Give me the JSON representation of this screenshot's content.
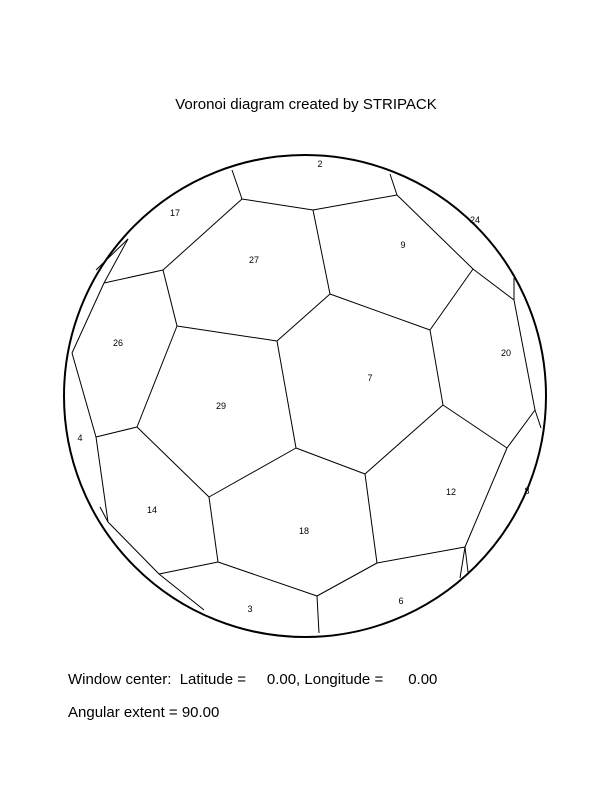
{
  "title": "Voronoi diagram created by STRIPACK",
  "cells": [
    {
      "id": "2",
      "label": "2"
    },
    {
      "id": "17",
      "label": "17"
    },
    {
      "id": "24",
      "label": "24"
    },
    {
      "id": "27",
      "label": "27"
    },
    {
      "id": "9",
      "label": "9"
    },
    {
      "id": "26",
      "label": "26"
    },
    {
      "id": "20",
      "label": "20"
    },
    {
      "id": "7",
      "label": "7"
    },
    {
      "id": "29",
      "label": "29"
    },
    {
      "id": "4",
      "label": "4"
    },
    {
      "id": "12",
      "label": "12"
    },
    {
      "id": "8",
      "label": "8"
    },
    {
      "id": "14",
      "label": "14"
    },
    {
      "id": "18",
      "label": "18"
    },
    {
      "id": "3",
      "label": "3"
    },
    {
      "id": "6",
      "label": "6"
    }
  ],
  "footer": {
    "center_line": "Window center:  Latitude =     0.00, Longitude =      0.00",
    "extent_line": "Angular extent = 90.00"
  }
}
